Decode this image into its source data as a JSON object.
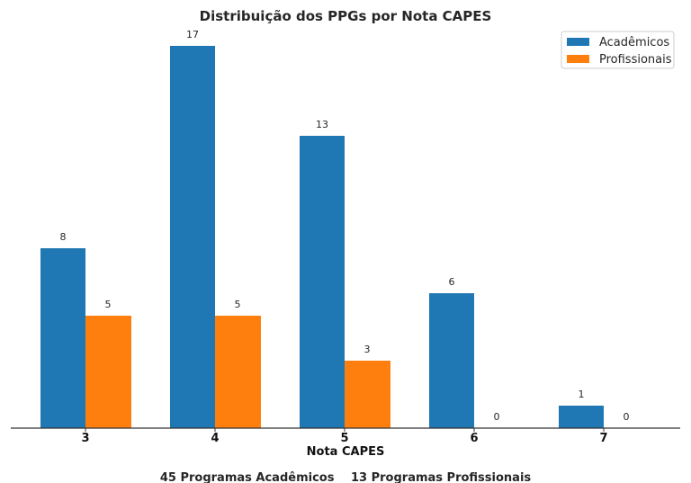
{
  "chart_data": {
    "type": "bar",
    "title": "Distribuição dos PPGs por Nota CAPES",
    "xlabel": "Nota CAPES",
    "ylabel": "",
    "categories": [
      "3",
      "4",
      "5",
      "6",
      "7"
    ],
    "series": [
      {
        "name": "Acadêmicos",
        "values": [
          8,
          17,
          13,
          6,
          1
        ],
        "color": "#1f77b4"
      },
      {
        "name": "Profissionais",
        "values": [
          5,
          5,
          3,
          0,
          0
        ],
        "color": "#ff7f0e"
      }
    ],
    "ylim": [
      0,
      18
    ],
    "grid": false,
    "legend_position": "top-right",
    "data_labels": true,
    "footer": {
      "academic": "45 Programas Acadêmicos",
      "professional": "13 Programas Profissionais"
    }
  }
}
